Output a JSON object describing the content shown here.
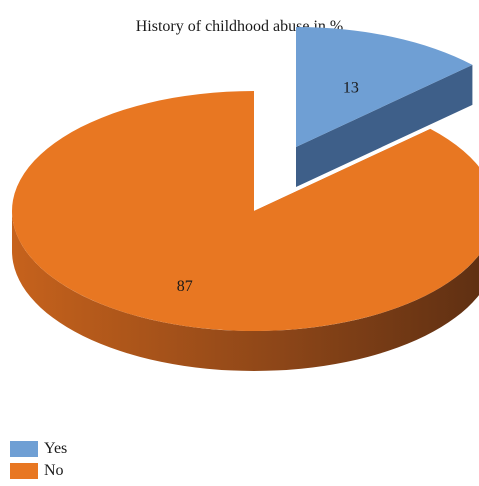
{
  "chart_data": {
    "type": "pie",
    "title": "History of childhood abuse in %",
    "slices": [
      {
        "label": "Yes",
        "value": 13,
        "color": "#6f9fd4",
        "side_color": "#3e5f89",
        "exploded": true
      },
      {
        "label": "No",
        "value": 87,
        "color": "#e87722",
        "side_color": "#a8501a",
        "exploded": false
      }
    ],
    "legend_position": "bottom-left",
    "data_labels": true
  }
}
